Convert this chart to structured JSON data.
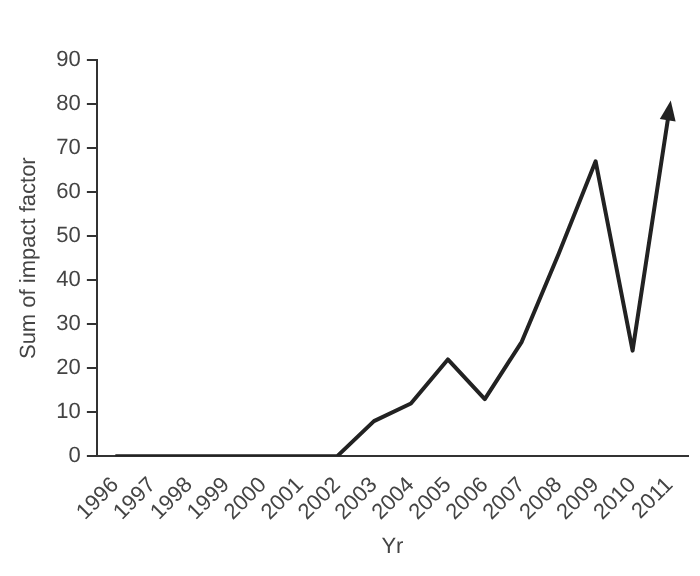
{
  "chart_data": {
    "type": "line",
    "xlabel": "Yr",
    "ylabel": "Sum of impact factor",
    "categories": [
      "1996",
      "1997",
      "1998",
      "1999",
      "2000",
      "2001",
      "2002",
      "2003",
      "2004",
      "2005",
      "2006",
      "2007",
      "2008",
      "2009",
      "2010",
      "2011"
    ],
    "series": [
      {
        "color": "#222222",
        "values": [
          0,
          0,
          0,
          0,
          0,
          0,
          0,
          8,
          12,
          22,
          13,
          26,
          46,
          67,
          24,
          79
        ]
      }
    ],
    "ylim": [
      0,
      90
    ],
    "yticks": [
      0,
      10,
      20,
      30,
      40,
      50,
      60,
      70,
      80,
      90
    ],
    "grid": false,
    "legend": false,
    "marker": "none",
    "line_style": "solid"
  }
}
